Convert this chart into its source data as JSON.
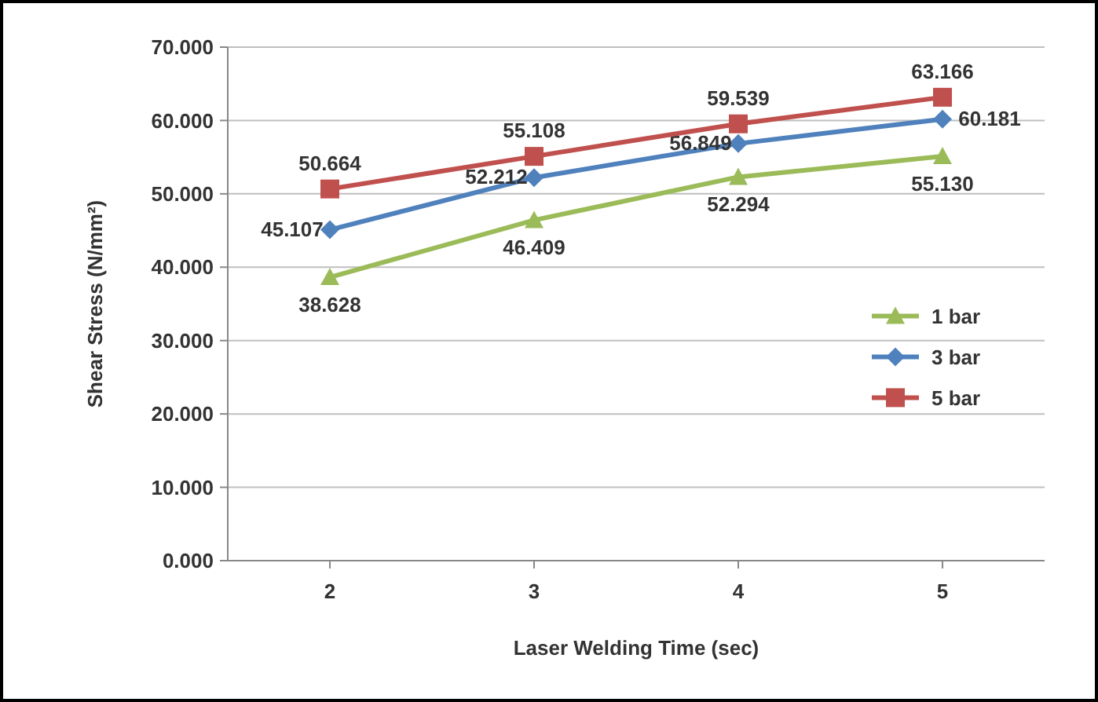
{
  "chart_data": {
    "type": "line",
    "xlabel": "Laser Welding Time (sec)",
    "ylabel": "Shear Stress (N/mm²)",
    "categories": [
      "2",
      "3",
      "4",
      "5"
    ],
    "series": [
      {
        "name": "1 bar",
        "color": "#9bbb59",
        "marker": "triangle",
        "values": [
          38.628,
          46.409,
          52.294,
          55.13
        ],
        "value_labels": [
          "38.628",
          "46.409",
          "52.294",
          "55.130"
        ]
      },
      {
        "name": "3 bar",
        "color": "#4f81bd",
        "marker": "diamond",
        "values": [
          45.107,
          52.212,
          56.849,
          60.181
        ],
        "value_labels": [
          "45.107",
          "52.212",
          "56.849",
          "60.181"
        ]
      },
      {
        "name": "5 bar",
        "color": "#c0504d",
        "marker": "square",
        "values": [
          50.664,
          55.108,
          59.539,
          63.166
        ],
        "value_labels": [
          "50.664",
          "55.108",
          "59.539",
          "63.166"
        ]
      }
    ],
    "ylim": [
      0,
      70
    ],
    "yticks": [
      {
        "value": 0,
        "label": "0.000"
      },
      {
        "value": 10,
        "label": "10.000"
      },
      {
        "value": 20,
        "label": "20.000"
      },
      {
        "value": 30,
        "label": "30.000"
      },
      {
        "value": 40,
        "label": "40.000"
      },
      {
        "value": 50,
        "label": "50.000"
      },
      {
        "value": 60,
        "label": "60.000"
      },
      {
        "value": 70,
        "label": "70.000"
      }
    ],
    "grid": "y",
    "legend": "right",
    "line_style": "solid"
  }
}
